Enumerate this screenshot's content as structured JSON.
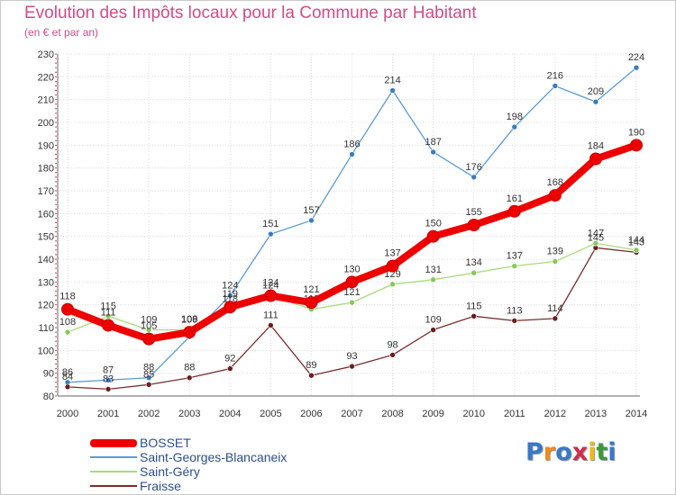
{
  "title": "Evolution des Impôts locaux pour la Commune par Habitant",
  "subtitle": "(en € et par an)",
  "logo_text": "Proxiti",
  "logo_letters": [
    {
      "ch": "P",
      "color": "#3a78c8"
    },
    {
      "ch": "r",
      "color": "#f08a1c"
    },
    {
      "ch": "o",
      "color": "#3a78c8"
    },
    {
      "ch": "x",
      "color": "#d12c4a"
    },
    {
      "ch": "i",
      "color": "#f0b81c"
    },
    {
      "ch": "t",
      "color": "#3a9a3a"
    },
    {
      "ch": "i",
      "color": "#3a78c8"
    }
  ],
  "chart_data": {
    "type": "line",
    "title": "Evolution des Impôts locaux pour la Commune par Habitant",
    "ylabel": "(en € et par an)",
    "xlabel": "",
    "x": [
      "2000",
      "2001",
      "2002",
      "2003",
      "2004",
      "2005",
      "2006",
      "2007",
      "2008",
      "2009",
      "2010",
      "2011",
      "2012",
      "2013",
      "2014"
    ],
    "ylim": [
      80,
      230
    ],
    "yticks": [
      80,
      90,
      100,
      110,
      120,
      130,
      140,
      150,
      160,
      170,
      180,
      190,
      200,
      210,
      220,
      230
    ],
    "grid": true,
    "legend_position": "bottom-left",
    "series": [
      {
        "name": "Saint-Georges-Blancaneix",
        "color": "#5b9bd5",
        "dot": "#3a7cc0",
        "values": [
          86,
          87,
          88,
          106,
          124,
          151,
          157,
          186,
          214,
          187,
          176,
          198,
          216,
          209,
          224
        ],
        "labels": [
          "86",
          "87",
          "88",
          "",
          "124",
          "151",
          "157",
          "186",
          "214",
          "187",
          "176",
          "198",
          "216",
          "209",
          "224"
        ]
      },
      {
        "name": "Fraisse",
        "color": "#7a2e2e",
        "dot": "#6a1e1e",
        "values": [
          84,
          83,
          85,
          88,
          92,
          111,
          89,
          93,
          98,
          109,
          115,
          113,
          114,
          145,
          143
        ],
        "labels": [
          "84",
          "83",
          "85",
          "88",
          "92",
          "111",
          "89",
          "93",
          "98",
          "109",
          "115",
          "113",
          "114",
          "145",
          "143"
        ]
      },
      {
        "name": "Saint-Géry",
        "color": "#a6dc7c",
        "dot": "#86c85a",
        "values": [
          108,
          115,
          109,
          109,
          118,
          124,
          118,
          121,
          129,
          131,
          134,
          137,
          139,
          147,
          144
        ],
        "labels": [
          "108",
          "115",
          "109",
          "109",
          "118",
          "124",
          "118",
          "121",
          "129",
          "131",
          "134",
          "137",
          "139",
          "147",
          "144"
        ]
      },
      {
        "name": "BOSSET",
        "color": "#ee0000",
        "dot": "#ee0000",
        "values": [
          118,
          111,
          105,
          108,
          119,
          124,
          121,
          130,
          137,
          150,
          155,
          161,
          168,
          184,
          190
        ],
        "labels": [
          "118",
          "111",
          "105",
          "108",
          "119",
          "124",
          "121",
          "130",
          "137",
          "150",
          "155",
          "161",
          "168",
          "184",
          "190"
        ]
      }
    ]
  },
  "legend": [
    {
      "label": "BOSSET",
      "color": "#ee0000",
      "thickness": 9
    },
    {
      "label": "Saint-Georges-Blancaneix",
      "color": "#5b9bd5",
      "thickness": 2
    },
    {
      "label": "Saint-Géry",
      "color": "#a6dc7c",
      "thickness": 2
    },
    {
      "label": "Fraisse",
      "color": "#7a2e2e",
      "thickness": 2
    }
  ]
}
